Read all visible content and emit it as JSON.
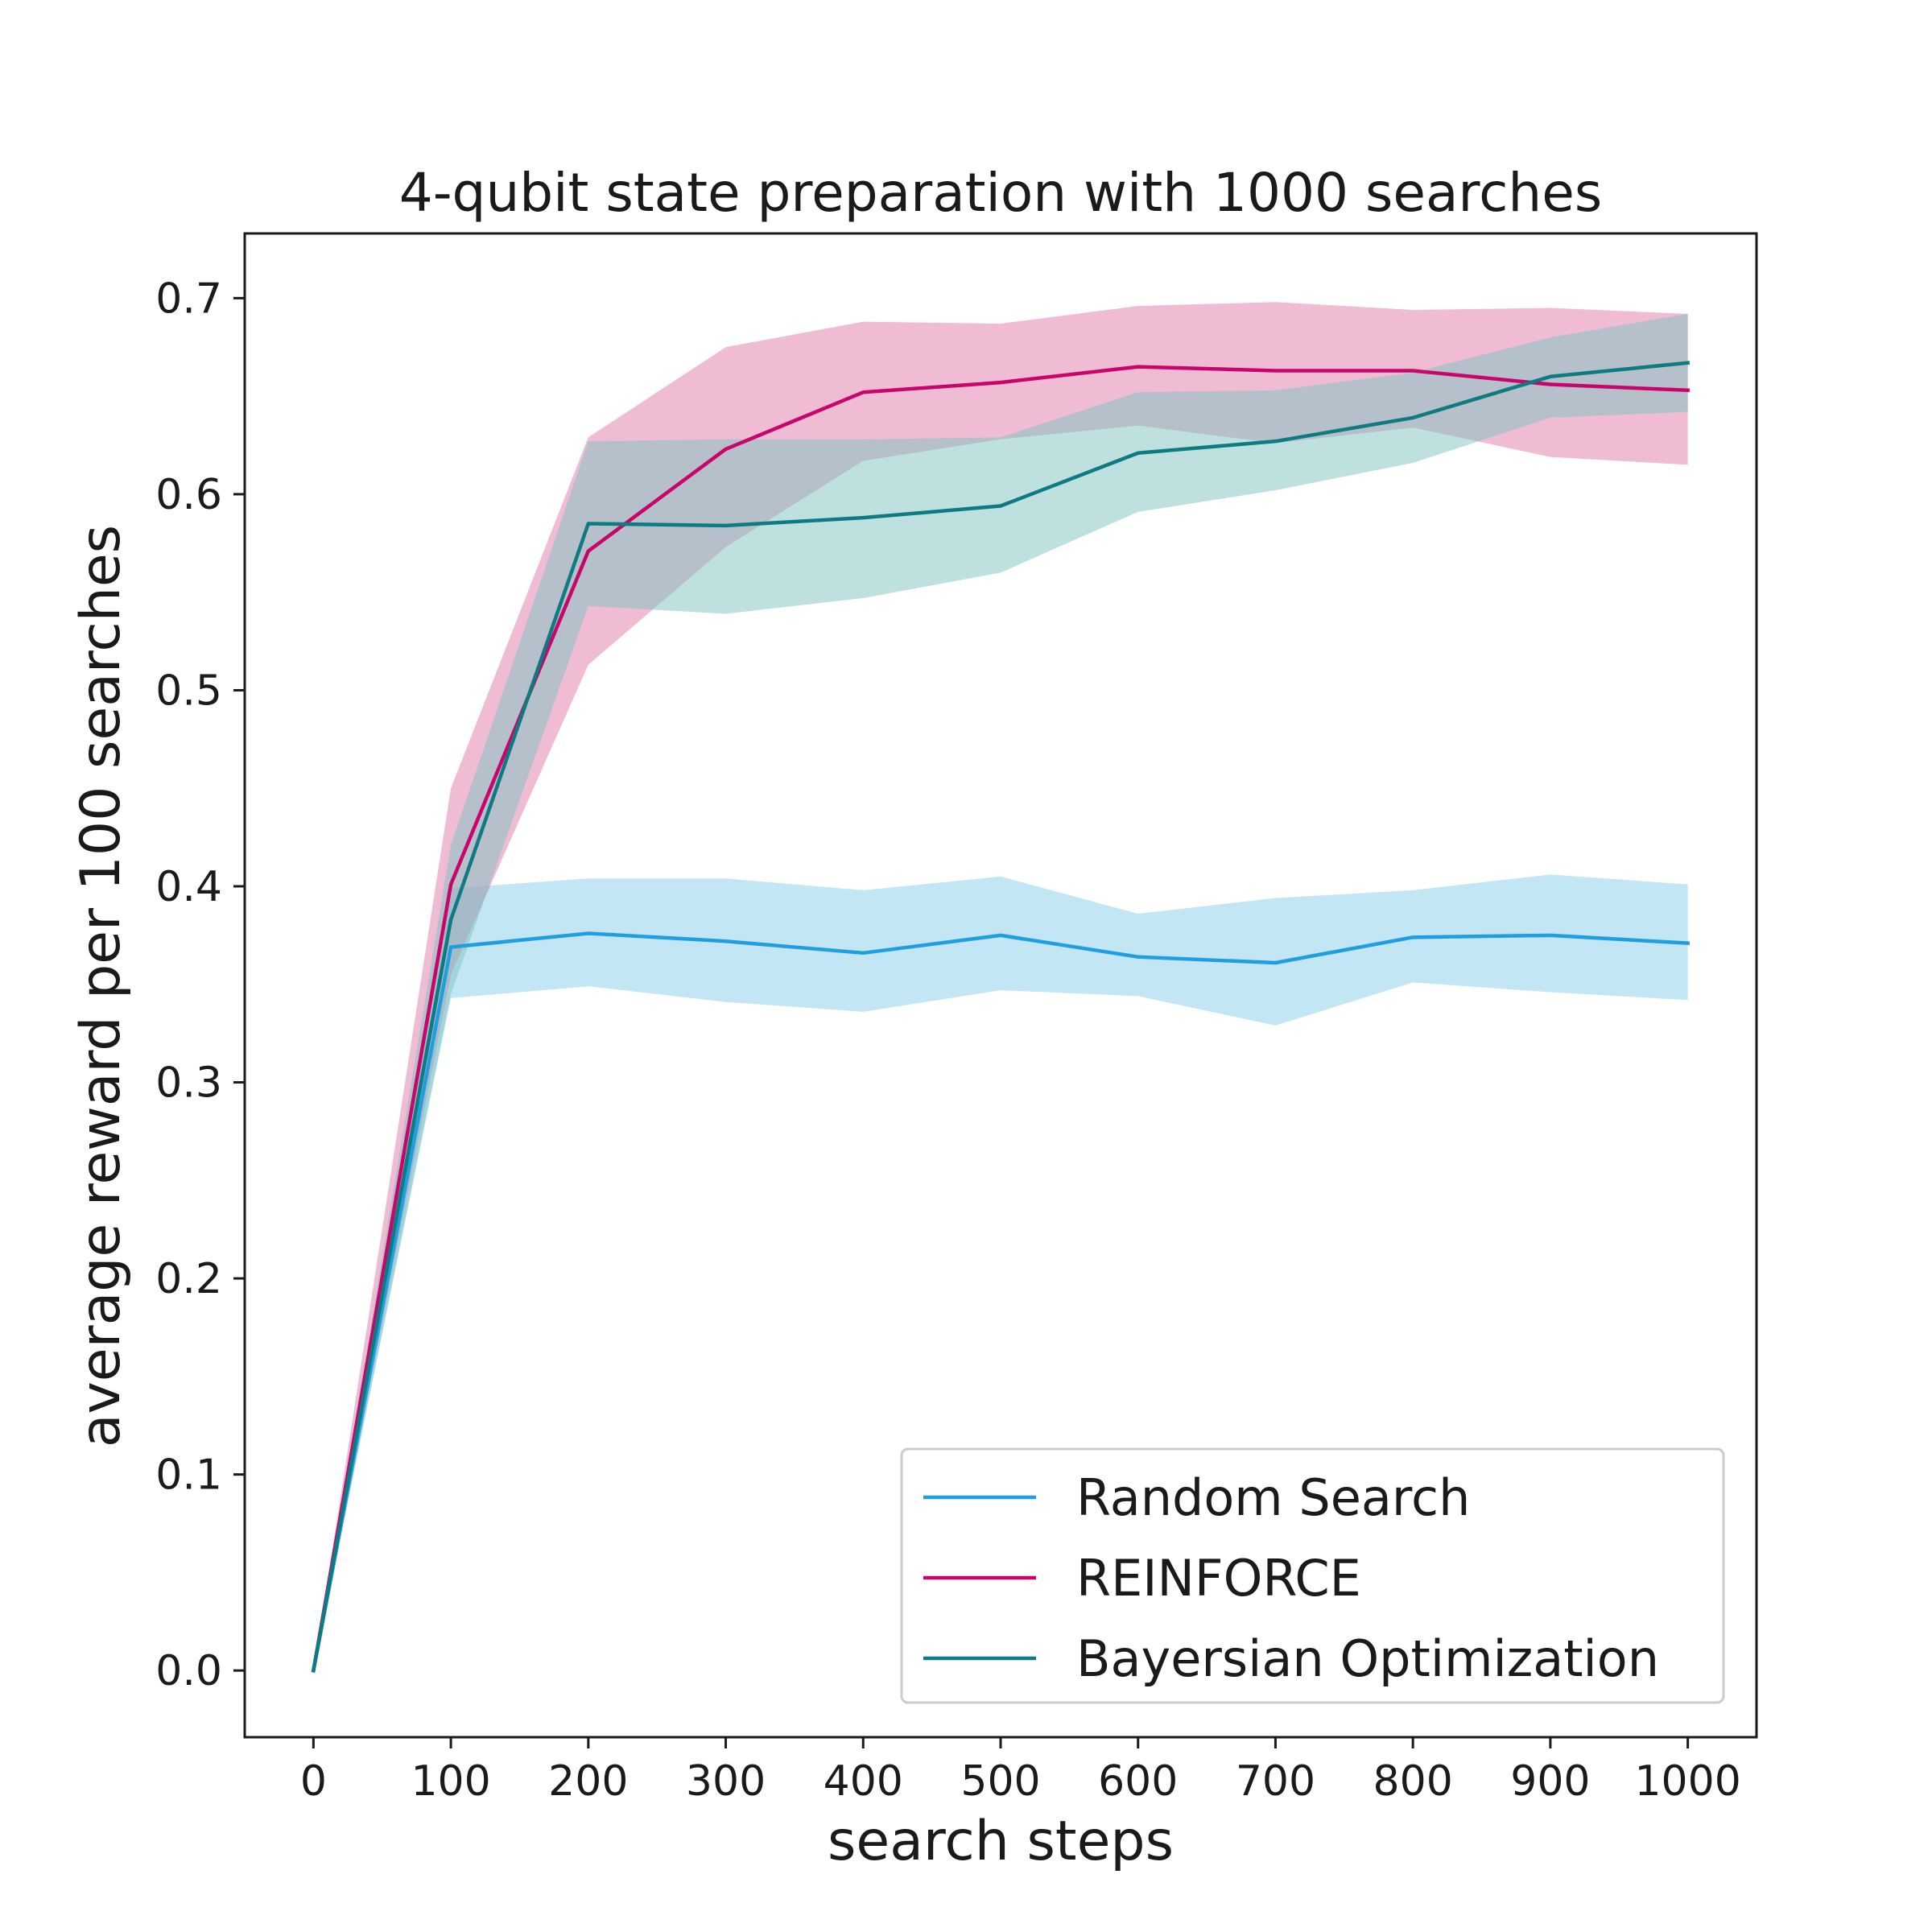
{
  "chart_data": {
    "type": "line",
    "title": "4-qubit state preparation with 1000 searches",
    "xlabel": "search steps",
    "ylabel": "average reward per 100 searches",
    "xlim": [
      -50,
      1050
    ],
    "ylim": [
      -0.034,
      0.733
    ],
    "xticks": [
      0,
      100,
      200,
      300,
      400,
      500,
      600,
      700,
      800,
      900,
      1000
    ],
    "yticks": [
      0.0,
      0.1,
      0.2,
      0.3,
      0.4,
      0.5,
      0.6,
      0.7
    ],
    "xtick_labels": [
      "0",
      "100",
      "200",
      "300",
      "400",
      "500",
      "600",
      "700",
      "800",
      "900",
      "1000"
    ],
    "ytick_labels": [
      "0.0",
      "0.1",
      "0.2",
      "0.3",
      "0.4",
      "0.5",
      "0.6",
      "0.7"
    ],
    "grid": false,
    "legend_position": "lower-right",
    "x": [
      0,
      100,
      200,
      300,
      400,
      500,
      600,
      700,
      800,
      900,
      1000
    ],
    "series": [
      {
        "name": "Random Search",
        "color": "#1f9fdf",
        "band_color": "#87ceeb",
        "values": [
          0.0,
          0.369,
          0.376,
          0.372,
          0.366,
          0.375,
          0.364,
          0.361,
          0.374,
          0.375,
          0.371
        ],
        "lower": [
          0.0,
          0.343,
          0.349,
          0.341,
          0.336,
          0.347,
          0.344,
          0.329,
          0.351,
          0.346,
          0.342
        ],
        "upper": [
          0.0,
          0.399,
          0.404,
          0.404,
          0.398,
          0.405,
          0.386,
          0.394,
          0.398,
          0.406,
          0.401
        ]
      },
      {
        "name": "REINFORCE",
        "color": "#c8056a",
        "band_color": "#e07aaa",
        "values": [
          0.0,
          0.401,
          0.571,
          0.623,
          0.652,
          0.657,
          0.665,
          0.663,
          0.663,
          0.656,
          0.653
        ],
        "lower": [
          0.0,
          0.355,
          0.513,
          0.573,
          0.617,
          0.628,
          0.635,
          0.626,
          0.634,
          0.619,
          0.615
        ],
        "upper": [
          0.0,
          0.45,
          0.629,
          0.675,
          0.688,
          0.687,
          0.696,
          0.698,
          0.694,
          0.695,
          0.692
        ]
      },
      {
        "name": "Bayersian Optimization",
        "color": "#0e7b83",
        "band_color": "#7ec3c1",
        "values": [
          0.0,
          0.383,
          0.585,
          0.584,
          0.588,
          0.594,
          0.621,
          0.627,
          0.639,
          0.66,
          0.667
        ],
        "lower": [
          0.0,
          0.345,
          0.543,
          0.539,
          0.547,
          0.56,
          0.591,
          0.602,
          0.616,
          0.639,
          0.642
        ],
        "upper": [
          0.0,
          0.421,
          0.627,
          0.628,
          0.628,
          0.629,
          0.652,
          0.653,
          0.662,
          0.68,
          0.692
        ]
      }
    ]
  }
}
